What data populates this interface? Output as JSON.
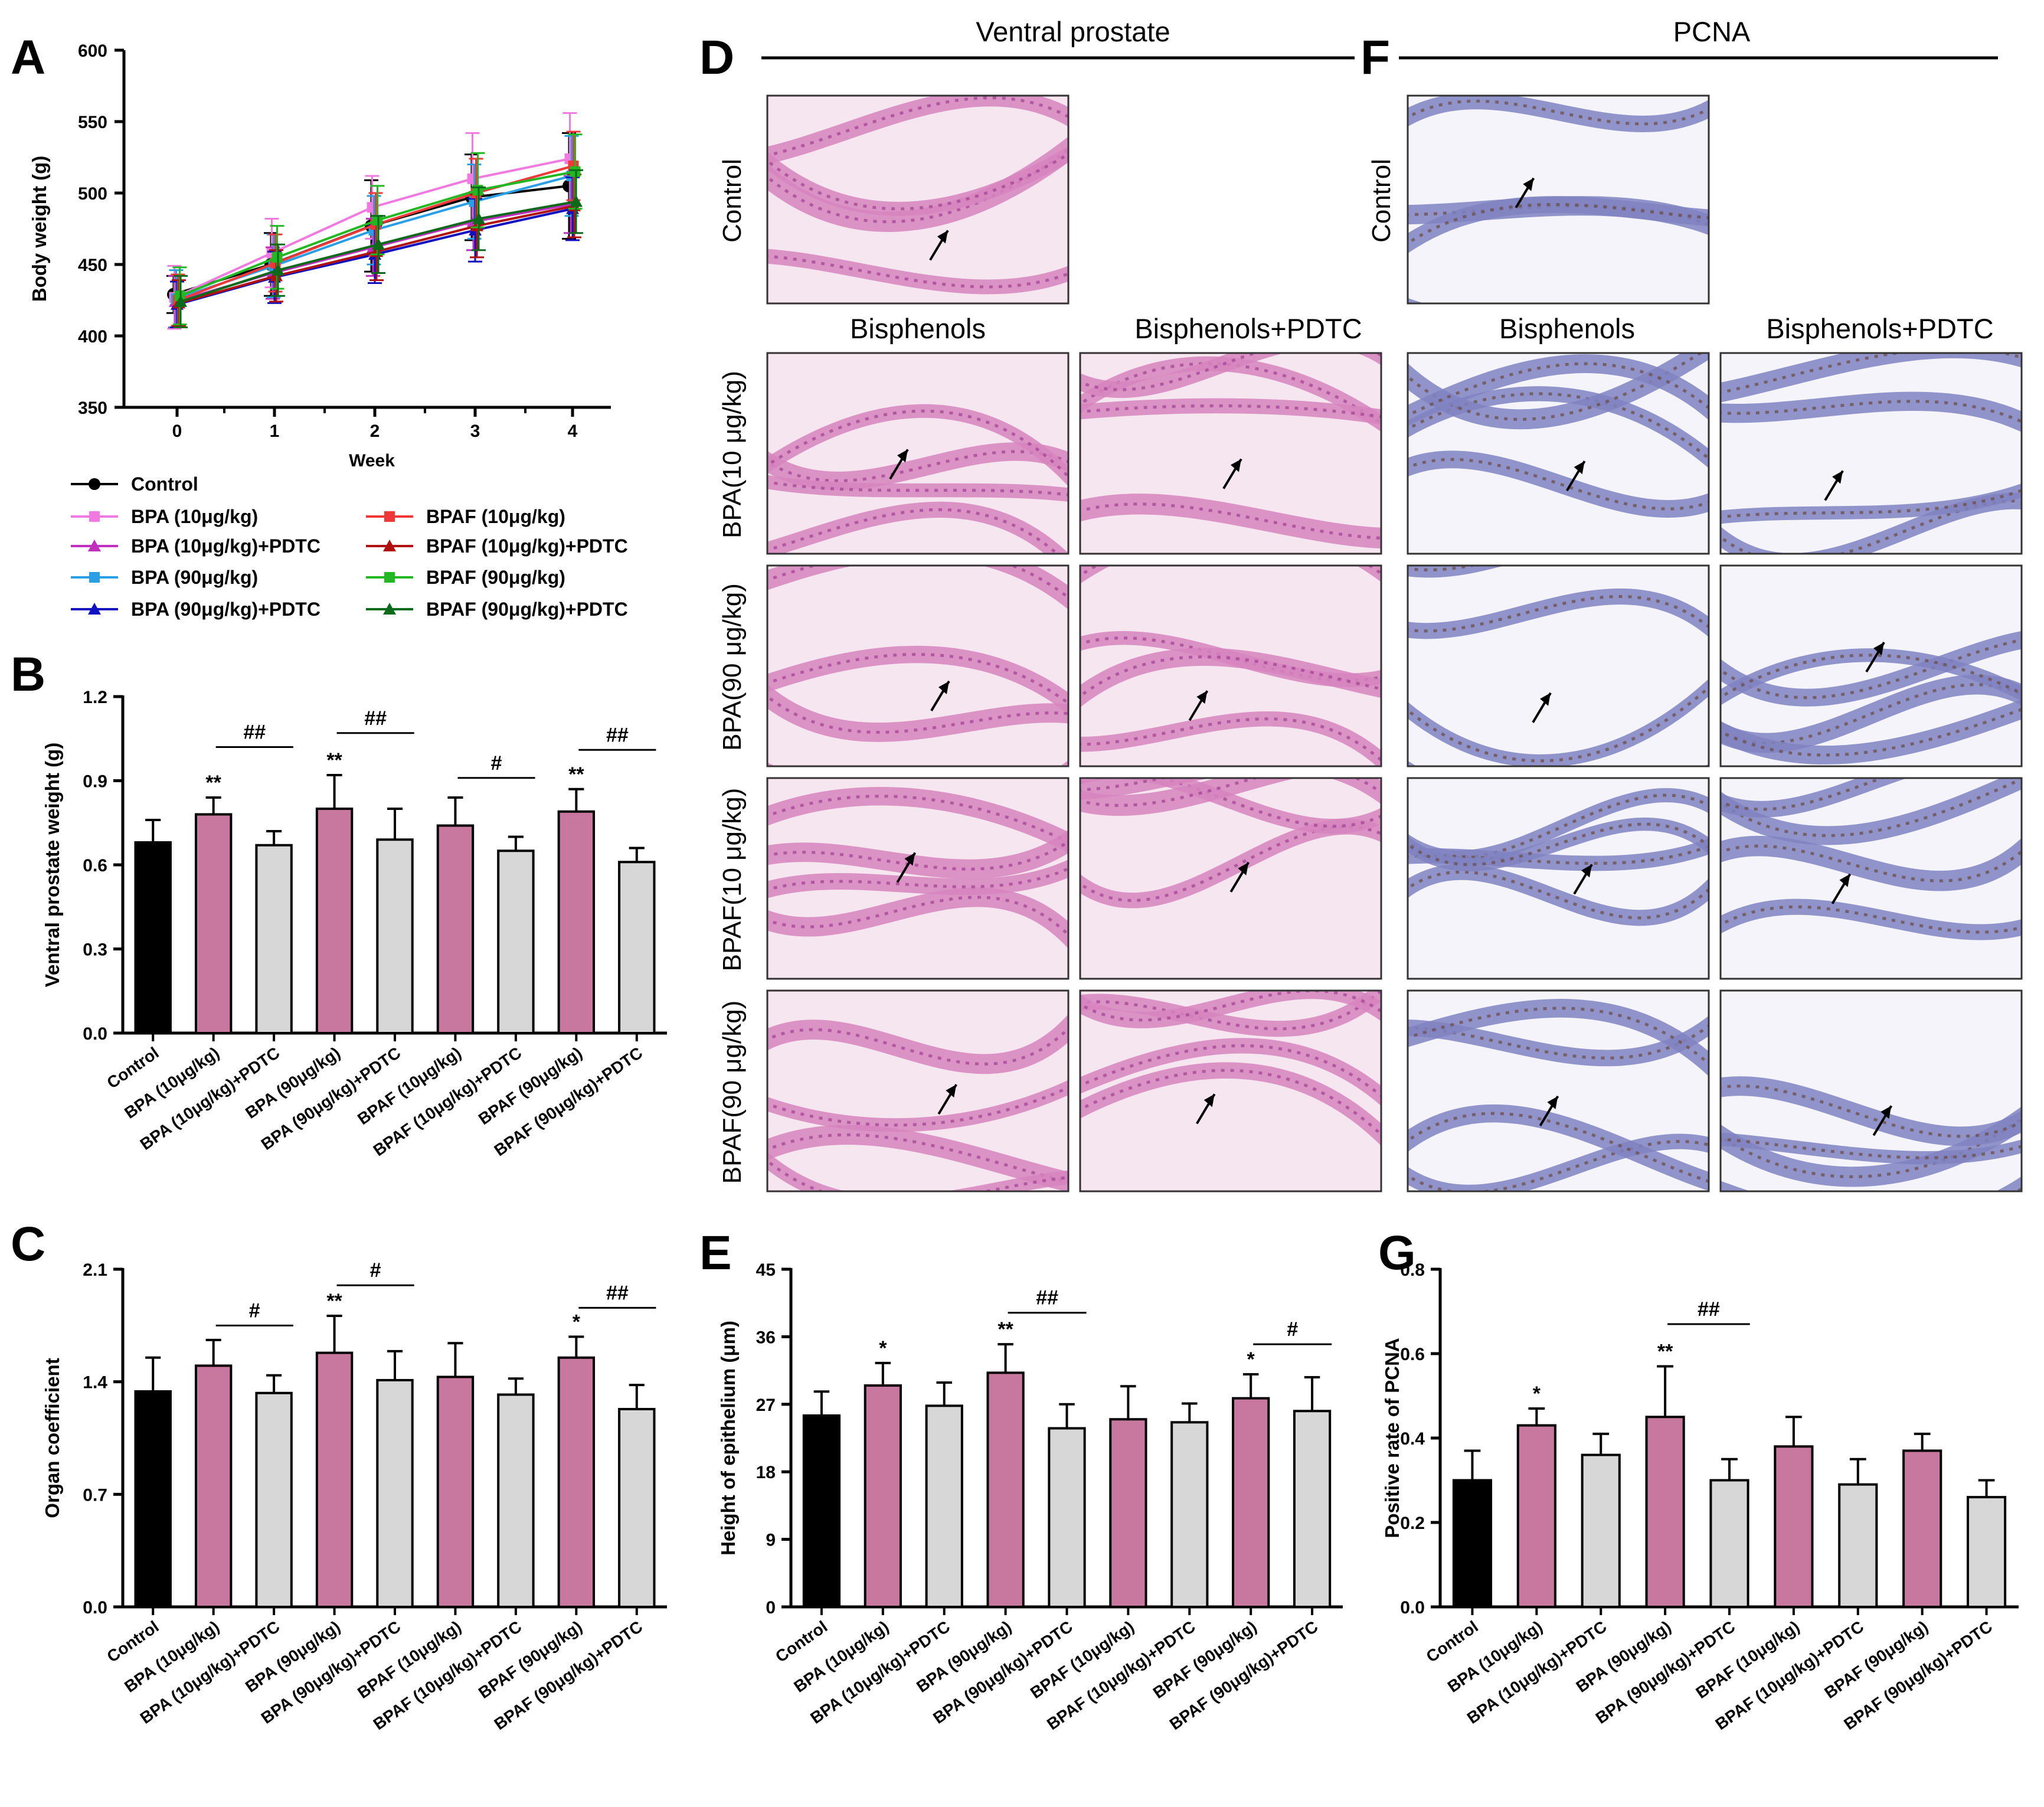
{
  "colors": {
    "control": "#000000",
    "bisphenol": "#c8789f",
    "pdtc": "#d7d7d7",
    "he_stain": "#d684bd",
    "he_bg": "#f6e6f0",
    "pcna_stain": "#7f83c1",
    "pcna_bg": "#f4f4fa"
  },
  "panels": {
    "A": "A",
    "B": "B",
    "C": "C",
    "D": "D",
    "E": "E",
    "F": "F",
    "G": "G"
  },
  "histology": {
    "ventral_header": "Ventral prostate",
    "pcna_header": "PCNA",
    "control_label": "Control",
    "col_bisphenols": "Bisphenols",
    "col_bisphenols_pdtc": "Bisphenols+PDTC",
    "rows": [
      "BPA(10 μg/kg)",
      "BPA(90 μg/kg)",
      "BPAF(10 μg/kg)",
      "BPAF(90 μg/kg)"
    ]
  },
  "categories": [
    "Control",
    "BPA (10μg/kg)",
    "BPA (10μg/kg)+PDTC",
    "BPA (90μg/kg)",
    "BPA (90μg/kg)+PDTC",
    "BPAF (10μg/kg)",
    "BPAF (10μg/kg)+PDTC",
    "BPAF (90μg/kg)",
    "BPAF (90μg/kg)+PDTC"
  ],
  "chart_data": [
    {
      "id": "A",
      "type": "line",
      "xlabel": "Week",
      "ylabel": "Body weight (g)",
      "x": [
        0,
        1,
        2,
        3,
        4
      ],
      "xticks": [
        "0",
        "1",
        "2",
        "3",
        "4"
      ],
      "ylim": [
        350,
        600
      ],
      "yticks": [
        "350",
        "400",
        "450",
        "500",
        "550",
        "600"
      ],
      "series": [
        {
          "name": "Control",
          "color": "#000000",
          "marker": "circle",
          "values": [
            429,
            450,
            477,
            497,
            505
          ],
          "err": [
            13,
            22,
            32,
            30,
            37
          ]
        },
        {
          "name": "BPA (10μg/kg)",
          "color": "#f07ae0",
          "marker": "square",
          "values": [
            427,
            458,
            490,
            510,
            524
          ],
          "err": [
            22,
            24,
            22,
            32,
            32
          ]
        },
        {
          "name": "BPA (10μg/kg)+PDTC",
          "color": "#c030c0",
          "marker": "triangle",
          "values": [
            424,
            444,
            462,
            480,
            492
          ],
          "err": [
            18,
            18,
            20,
            20,
            20
          ]
        },
        {
          "name": "BPA (90μg/kg)",
          "color": "#2a9fe6",
          "marker": "square",
          "values": [
            426,
            449,
            474,
            494,
            512
          ],
          "err": [
            20,
            22,
            24,
            26,
            28
          ]
        },
        {
          "name": "BPA (90μg/kg)+PDTC",
          "color": "#1010c0",
          "marker": "triangle",
          "values": [
            422,
            441,
            457,
            474,
            489
          ],
          "err": [
            16,
            18,
            20,
            22,
            22
          ]
        },
        {
          "name": "BPAF (10μg/kg)",
          "color": "#f03838",
          "marker": "square",
          "values": [
            425,
            451,
            478,
            500,
            519
          ],
          "err": [
            18,
            20,
            22,
            24,
            24
          ]
        },
        {
          "name": "BPAF (10μg/kg)+PDTC",
          "color": "#b01010",
          "marker": "triangle",
          "values": [
            423,
            442,
            459,
            477,
            491
          ],
          "err": [
            16,
            18,
            20,
            22,
            22
          ]
        },
        {
          "name": "BPAF (90μg/kg)",
          "color": "#22b822",
          "marker": "square",
          "values": [
            428,
            455,
            481,
            502,
            515
          ],
          "err": [
            20,
            22,
            24,
            26,
            26
          ]
        },
        {
          "name": "BPAF (90μg/kg)+PDTC",
          "color": "#0a6a1a",
          "marker": "triangle",
          "values": [
            424,
            446,
            464,
            482,
            494
          ],
          "err": [
            18,
            18,
            20,
            22,
            22
          ]
        }
      ]
    },
    {
      "id": "B",
      "type": "bar",
      "ylabel": "Ventral prostate weight (g)",
      "ylim": [
        0,
        1.2
      ],
      "yticks": [
        "0.0",
        "0.3",
        "0.6",
        "0.9",
        "1.2"
      ],
      "values": [
        0.68,
        0.78,
        0.67,
        0.8,
        0.69,
        0.74,
        0.65,
        0.79,
        0.61
      ],
      "err": [
        0.08,
        0.06,
        0.05,
        0.12,
        0.11,
        0.1,
        0.05,
        0.08,
        0.05
      ],
      "stars": [
        "",
        "**",
        "",
        "**",
        "",
        "",
        "",
        "**",
        ""
      ],
      "brackets": [
        {
          "from": 1,
          "to": 2,
          "label": "##",
          "y": 1.02
        },
        {
          "from": 3,
          "to": 4,
          "label": "##",
          "y": 1.07
        },
        {
          "from": 5,
          "to": 6,
          "label": "#",
          "y": 0.91
        },
        {
          "from": 7,
          "to": 8,
          "label": "##",
          "y": 1.01
        }
      ]
    },
    {
      "id": "C",
      "type": "bar",
      "ylabel": "Organ coefficient",
      "ylim": [
        0,
        2.1
      ],
      "yticks": [
        "0.0",
        "0.7",
        "1.4",
        "2.1"
      ],
      "values": [
        1.34,
        1.5,
        1.33,
        1.58,
        1.41,
        1.43,
        1.32,
        1.55,
        1.23
      ],
      "err": [
        0.21,
        0.16,
        0.11,
        0.23,
        0.18,
        0.21,
        0.1,
        0.13,
        0.15
      ],
      "stars": [
        "",
        "",
        "",
        "**",
        "",
        "",
        "",
        "*",
        ""
      ],
      "brackets": [
        {
          "from": 1,
          "to": 2,
          "label": "#",
          "y": 1.75
        },
        {
          "from": 3,
          "to": 4,
          "label": "#",
          "y": 2.0
        },
        {
          "from": 7,
          "to": 8,
          "label": "##",
          "y": 1.86
        }
      ]
    },
    {
      "id": "E",
      "type": "bar",
      "ylabel": "Height of epithelium (μm)",
      "ylim": [
        0,
        45
      ],
      "yticks": [
        "0",
        "9",
        "18",
        "27",
        "36",
        "45"
      ],
      "values": [
        25.5,
        29.5,
        26.8,
        31.2,
        23.8,
        25.0,
        24.6,
        27.8,
        26.1
      ],
      "err": [
        3.2,
        3.0,
        3.1,
        3.8,
        3.2,
        4.4,
        2.5,
        3.2,
        4.5
      ],
      "stars": [
        "",
        "*",
        "",
        "**",
        "",
        "",
        "",
        "*",
        ""
      ],
      "brackets": [
        {
          "from": 3,
          "to": 4,
          "label": "##",
          "y": 39.2
        },
        {
          "from": 7,
          "to": 8,
          "label": "#",
          "y": 35.0
        }
      ]
    },
    {
      "id": "G",
      "type": "bar",
      "ylabel": "Positive rate of PCNA",
      "ylim": [
        0,
        0.8
      ],
      "yticks": [
        "0.0",
        "0.2",
        "0.4",
        "0.6",
        "0.8"
      ],
      "values": [
        0.3,
        0.43,
        0.36,
        0.45,
        0.3,
        0.38,
        0.29,
        0.37,
        0.26
      ],
      "err": [
        0.07,
        0.04,
        0.05,
        0.12,
        0.05,
        0.07,
        0.06,
        0.04,
        0.04
      ],
      "stars": [
        "",
        "*",
        "",
        "**",
        "",
        "",
        "",
        "",
        ""
      ],
      "brackets": [
        {
          "from": 3,
          "to": 4,
          "label": "##",
          "y": 0.67
        }
      ]
    }
  ]
}
